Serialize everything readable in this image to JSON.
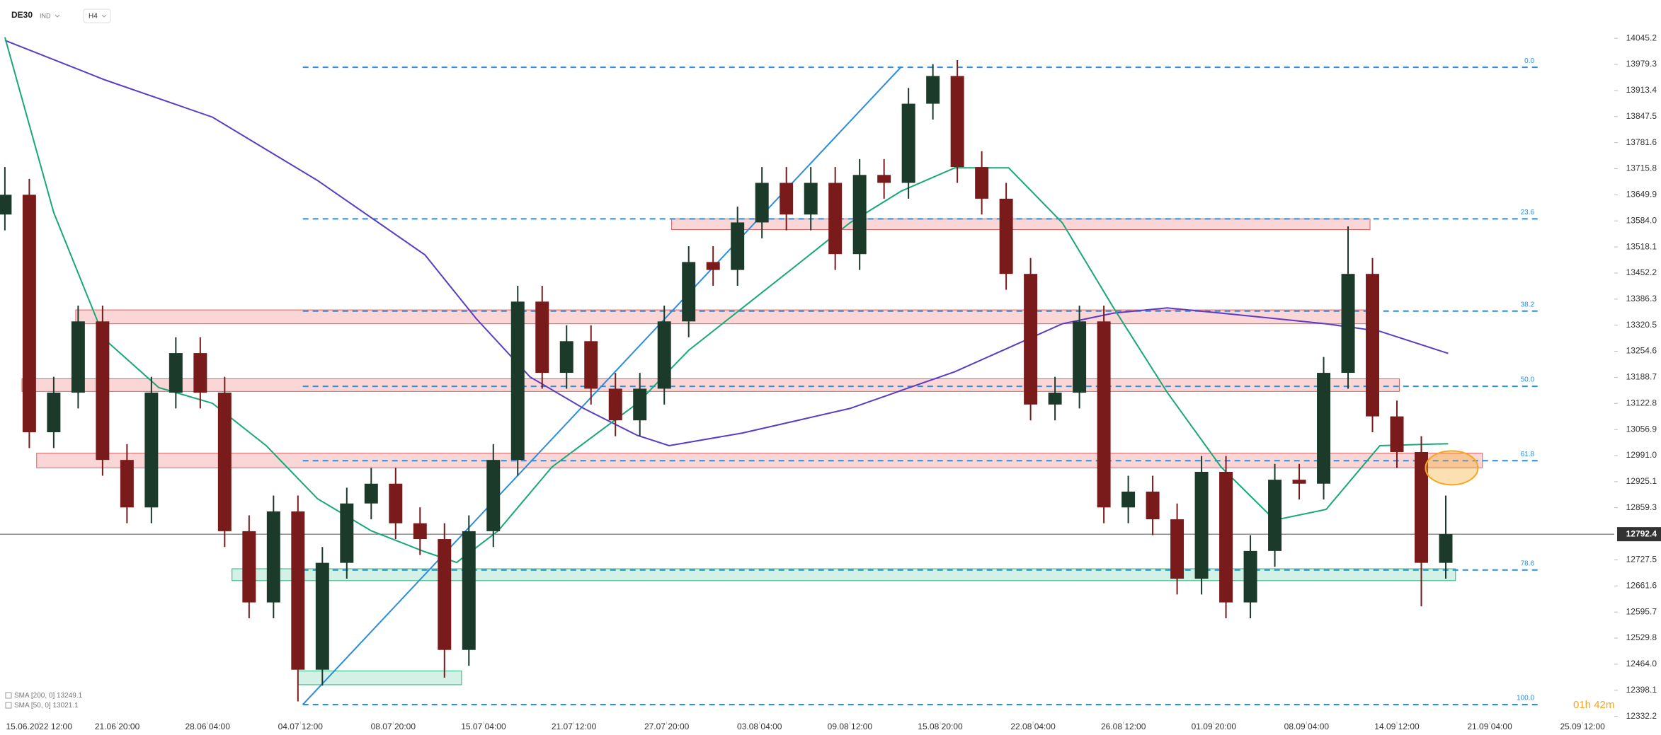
{
  "chart_data": {
    "type": "candlestick",
    "symbol": "DE30",
    "market": "IND",
    "interval": "H4",
    "countdown": "01h 42m",
    "up_color": "#1b3a2a",
    "down_color": "#7a1b1b",
    "ylim": [
      12319,
      14142
    ],
    "xlim": [
      -0.2,
      65.9
    ],
    "yticks": [
      14045.2,
      13979.3,
      13913.4,
      13847.5,
      13781.6,
      13715.8,
      13649.9,
      {
        "value": 13584,
        "label": "13584.0"
      },
      13518.1,
      13452.2,
      13386.3,
      13320.5,
      13254.6,
      13188.7,
      13122.8,
      13056.9,
      {
        "value": 12991,
        "label": "12991.0"
      },
      12925.1,
      12859.3,
      12727.5,
      12661.6,
      12595.7,
      12529.8,
      {
        "value": 12464,
        "label": "12464.0"
      },
      12398.1,
      12332.2
    ],
    "xticks": [
      {
        "value": 1.4,
        "label": "15.06.2022 12:00"
      },
      {
        "value": 4.6,
        "label": "21.06 20:00"
      },
      {
        "value": 8.3,
        "label": "28.06 04:00"
      },
      {
        "value": 12.1,
        "label": "04.07 12:00"
      },
      {
        "value": 15.9,
        "label": "08.07 20:00"
      },
      {
        "value": 19.6,
        "label": "15.07 04:00"
      },
      {
        "value": 23.3,
        "label": "21.07 12:00"
      },
      {
        "value": 27.1,
        "label": "27.07 20:00"
      },
      {
        "value": 30.9,
        "label": "03.08 04:00"
      },
      {
        "value": 34.6,
        "label": "09.08 12:00"
      },
      {
        "value": 38.3,
        "label": "15.08 20:00"
      },
      {
        "value": 42.1,
        "label": "22.08 04:00"
      },
      {
        "value": 45.8,
        "label": "26.08 12:00"
      },
      {
        "value": 49.5,
        "label": "01.09 20:00"
      },
      {
        "value": 53.3,
        "label": "08.09 04:00"
      },
      {
        "value": 57.0,
        "label": "14.09 12:00"
      },
      {
        "value": 60.8,
        "label": "21.09 04:00"
      },
      {
        "value": 64.6,
        "label": "25.09 12:00"
      }
    ],
    "open": [
      13600,
      13650,
      13050,
      13150,
      13330,
      12980,
      12860,
      13150,
      13250,
      13150,
      12800,
      12620,
      12850,
      12450,
      12720,
      12870,
      12920,
      12820,
      12780,
      12500,
      12800,
      12980,
      13380,
      13200,
      13280,
      13160,
      13080,
      13160,
      13330,
      13480,
      13460,
      13580,
      13680,
      13600,
      13680,
      13500,
      13700,
      13680,
      13880,
      13950,
      13720,
      13640,
      13450,
      13120,
      13150,
      13330,
      12860,
      12900,
      12830,
      12680,
      12950,
      12620,
      12750,
      12930,
      12920,
      13200,
      13450,
      13090,
      13000,
      12720
    ],
    "high": [
      13720,
      13690,
      13190,
      13370,
      13370,
      13020,
      13190,
      13290,
      13290,
      13190,
      12840,
      12890,
      12890,
      12760,
      12910,
      12960,
      12960,
      12860,
      12820,
      12840,
      13020,
      13420,
      13420,
      13320,
      13320,
      13200,
      13200,
      13370,
      13520,
      13520,
      13620,
      13720,
      13720,
      13720,
      13720,
      13740,
      13740,
      13920,
      13980,
      13990,
      13760,
      13680,
      13490,
      13190,
      13370,
      13370,
      12940,
      12940,
      12870,
      12990,
      12990,
      12790,
      12970,
      12970,
      13240,
      13570,
      13490,
      13130,
      13040,
      12890
    ],
    "low": [
      13560,
      13010,
      13010,
      13110,
      12940,
      12820,
      12820,
      13110,
      13110,
      12760,
      12580,
      12580,
      12370,
      12410,
      12680,
      12830,
      12780,
      12740,
      12430,
      12460,
      12760,
      12940,
      13160,
      13160,
      13120,
      13040,
      13040,
      13120,
      13290,
      13420,
      13420,
      13540,
      13560,
      13560,
      13460,
      13460,
      13640,
      13640,
      13840,
      13680,
      13600,
      13410,
      13080,
      13080,
      13110,
      12820,
      12820,
      12790,
      12640,
      12640,
      12580,
      12580,
      12710,
      12880,
      12880,
      13160,
      13050,
      12960,
      12610,
      12680
    ],
    "close": [
      13650,
      13050,
      13150,
      13330,
      12980,
      12860,
      13150,
      13250,
      13150,
      12800,
      12620,
      12850,
      12450,
      12720,
      12870,
      12920,
      12820,
      12780,
      12500,
      12800,
      12980,
      13380,
      13200,
      13280,
      13160,
      13080,
      13160,
      13330,
      13480,
      13460,
      13580,
      13680,
      13600,
      13680,
      13500,
      13700,
      13680,
      13880,
      13950,
      13720,
      13640,
      13450,
      13120,
      13150,
      13330,
      12860,
      12900,
      12830,
      12680,
      12950,
      12620,
      12750,
      12930,
      12920,
      13200,
      13450,
      13090,
      13000,
      12720,
      12792.4
    ],
    "current_price": 12792.4,
    "series": [
      {
        "name": "SMA [200, 0]",
        "color": "#5b3cc4",
        "x": [
          0,
          4.1,
          8.5,
          12.8,
          17.2,
          19.3,
          21.5,
          23.7,
          25.9,
          27.2,
          30.2,
          34.6,
          38.9,
          43.3,
          45.4,
          47.6,
          49.8,
          54.1,
          56.3,
          59.1
        ],
        "values": [
          14040,
          13940,
          13846,
          13686,
          13498,
          13337,
          13190,
          13110,
          13042,
          13016,
          13048,
          13110,
          13203,
          13324,
          13351,
          13364,
          13351,
          13324,
          13305,
          13249.1
        ]
      },
      {
        "name": "SMA [50, 0]",
        "color": "#18a878",
        "x": [
          0,
          2,
          4.1,
          6.3,
          8.5,
          10.7,
          12.8,
          15,
          17.2,
          18.5,
          20.2,
          22.4,
          25.9,
          28.0,
          30.2,
          32.4,
          34.6,
          36.7,
          38.9,
          41.1,
          43.3,
          45.4,
          47.6,
          49.8,
          52,
          54.1,
          56.3,
          59.1
        ],
        "values": [
          14048,
          13605,
          13284,
          13163,
          13123,
          13016,
          12882,
          12801,
          12748,
          12721,
          12801,
          12962,
          13123,
          13257,
          13364,
          13471,
          13579,
          13659,
          13718,
          13718,
          13579,
          13364,
          13150,
          12962,
          12828,
          12855,
          13016,
          13021.1
        ]
      }
    ],
    "fib_x": [
      12.2,
      62.8
    ],
    "fib_color": "#2a8de0",
    "fib_levels": [
      {
        "label": "0.0",
        "value": 13972
      },
      {
        "label": "23.6",
        "value": 13589
      },
      {
        "label": "38.2",
        "value": 13356
      },
      {
        "label": "50.0",
        "value": 13166
      },
      {
        "label": "61.8",
        "value": 12978
      },
      {
        "label": "78.6",
        "value": 12702
      },
      {
        "label": "100.0",
        "value": 12362
      }
    ],
    "trendline": {
      "color": "#2a8de0",
      "x": [
        12.2,
        36.7
      ],
      "values": [
        12362,
        13973
      ]
    },
    "zones": [
      {
        "color": "red",
        "x": [
          27.3,
          55.9
        ],
        "values": [
          13562,
          13589
        ]
      },
      {
        "color": "red",
        "x": [
          2.9,
          56.2
        ],
        "values": [
          13324,
          13359
        ]
      },
      {
        "color": "red",
        "x": [
          0.7,
          57.1
        ],
        "values": [
          13153,
          13185
        ]
      },
      {
        "color": "red",
        "x": [
          1.3,
          60.5
        ],
        "values": [
          12960,
          12997
        ]
      },
      {
        "color": "green",
        "x": [
          9.3,
          59.4
        ],
        "values": [
          12675,
          12705
        ]
      },
      {
        "color": "green",
        "x": [
          12.0,
          18.7
        ],
        "values": [
          12412,
          12447
        ]
      }
    ],
    "highlight": {
      "x": 59.1,
      "value": 12960,
      "color": "#f5a623"
    }
  }
}
